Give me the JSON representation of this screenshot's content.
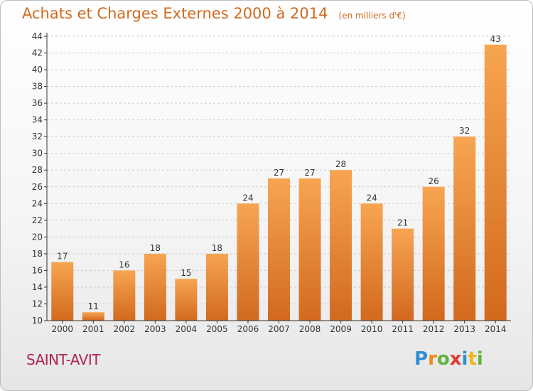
{
  "title": "Achats et Charges Externes 2000 à 2014",
  "subtitle": "(en milliers d'€)",
  "place": "SAINT-AVIT",
  "logo": {
    "letters": [
      "P",
      "r",
      "o",
      "x",
      "i",
      "t",
      "i"
    ],
    "colors": [
      "#2e8fd0",
      "#f08a1c",
      "#5fb53a",
      "#e03a2a",
      "#2e8fd0",
      "#f0b41c",
      "#5fb53a"
    ]
  },
  "colors": {
    "bar_top": "#f7a552",
    "bar_bottom": "#d2691e",
    "axis": "#333333",
    "grid": "#cccccc",
    "title": "#d2691e",
    "place": "#b0245a"
  },
  "chart_data": {
    "type": "bar",
    "title": "Achats et Charges Externes 2000 à 2014",
    "subtitle": "(en milliers d'€)",
    "xlabel": "",
    "ylabel": "",
    "categories": [
      "2000",
      "2001",
      "2002",
      "2003",
      "2004",
      "2005",
      "2006",
      "2007",
      "2008",
      "2009",
      "2010",
      "2011",
      "2012",
      "2013",
      "2014"
    ],
    "values": [
      17,
      11,
      16,
      18,
      15,
      18,
      24,
      27,
      27,
      28,
      24,
      21,
      26,
      32,
      43
    ],
    "ylim": [
      10,
      44
    ],
    "yticks": [
      10,
      12,
      14,
      16,
      18,
      20,
      22,
      24,
      26,
      28,
      30,
      32,
      34,
      36,
      38,
      40,
      42,
      44
    ],
    "grid": true,
    "legend": "none"
  }
}
